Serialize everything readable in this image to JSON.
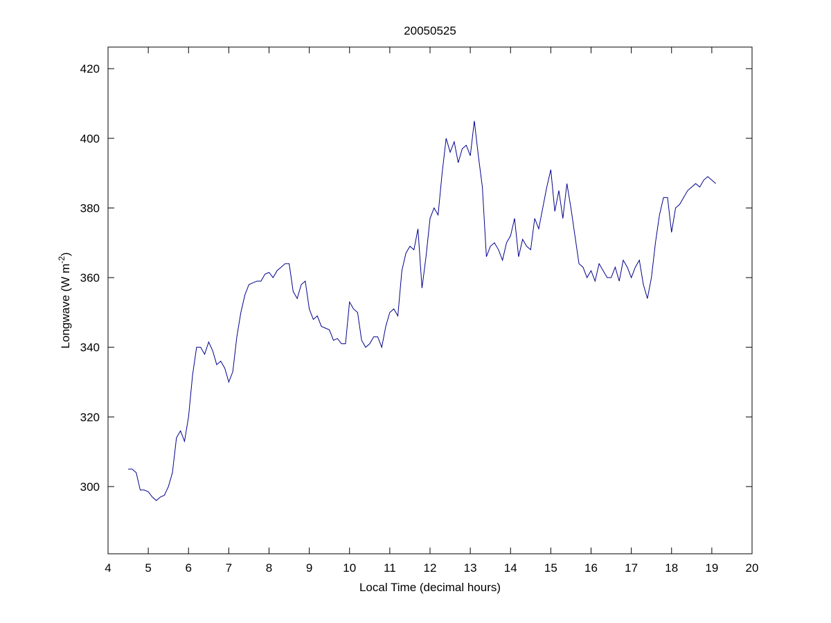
{
  "chart_data": {
    "type": "line",
    "title": "20050525",
    "xlabel": "Local Time (decimal hours)",
    "ylabel": [
      "Longwave (W m",
      "-2",
      ")"
    ],
    "x": [
      4.5,
      4.6,
      4.7,
      4.8,
      4.9,
      5.0,
      5.1,
      5.2,
      5.3,
      5.4,
      5.5,
      5.6,
      5.7,
      5.8,
      5.9,
      6.0,
      6.1,
      6.2,
      6.3,
      6.4,
      6.5,
      6.6,
      6.7,
      6.8,
      6.9,
      7.0,
      7.1,
      7.2,
      7.3,
      7.4,
      7.5,
      7.6,
      7.7,
      7.8,
      7.9,
      8.0,
      8.1,
      8.2,
      8.3,
      8.4,
      8.5,
      8.6,
      8.7,
      8.8,
      8.9,
      9.0,
      9.1,
      9.2,
      9.3,
      9.4,
      9.5,
      9.6,
      9.7,
      9.8,
      9.9,
      10.0,
      10.1,
      10.2,
      10.3,
      10.4,
      10.5,
      10.6,
      10.7,
      10.8,
      10.9,
      11.0,
      11.1,
      11.2,
      11.3,
      11.4,
      11.5,
      11.6,
      11.7,
      11.8,
      11.9,
      12.0,
      12.1,
      12.2,
      12.3,
      12.4,
      12.5,
      12.6,
      12.7,
      12.8,
      12.9,
      13.0,
      13.1,
      13.2,
      13.3,
      13.4,
      13.5,
      13.6,
      13.7,
      13.8,
      13.9,
      14.0,
      14.1,
      14.2,
      14.3,
      14.4,
      14.5,
      14.6,
      14.7,
      14.8,
      14.9,
      15.0,
      15.1,
      15.2,
      15.3,
      15.4,
      15.5,
      15.6,
      15.7,
      15.8,
      15.9,
      16.0,
      16.1,
      16.2,
      16.3,
      16.4,
      16.5,
      16.6,
      16.7,
      16.8,
      16.9,
      17.0,
      17.1,
      17.2,
      17.3,
      17.4,
      17.5,
      17.6,
      17.7,
      17.8,
      17.9,
      18.0,
      18.1,
      18.2,
      18.3,
      18.4,
      18.5,
      18.6,
      18.7,
      18.8,
      18.9,
      19.0,
      19.1
    ],
    "series": [
      {
        "color": "#00008b",
        "values": [
          305,
          305,
          304,
          299,
          299,
          298.5,
          297,
          296,
          297,
          297.5,
          300,
          304,
          314,
          316,
          313,
          320,
          332,
          340,
          340,
          338,
          341.5,
          339,
          335,
          336,
          334,
          330,
          333,
          343,
          350,
          355,
          358,
          358.5,
          359,
          359,
          361,
          361.5,
          360,
          362,
          363,
          364,
          364,
          356,
          354,
          358,
          359,
          351,
          348,
          349,
          346,
          345.5,
          345,
          342,
          342.5,
          341,
          341,
          353,
          351,
          350,
          342,
          340,
          341,
          343,
          343,
          340,
          346,
          350,
          351,
          349,
          362,
          367,
          369,
          368,
          374,
          357,
          366,
          377,
          380,
          378,
          390,
          400,
          396,
          399,
          393,
          397,
          398,
          395,
          405,
          395,
          386,
          366,
          369,
          370,
          368,
          365,
          370,
          372,
          377,
          366,
          371,
          369,
          368,
          377,
          374,
          380,
          386,
          391,
          379,
          385,
          377,
          387,
          380,
          372,
          364,
          363,
          360,
          362,
          359,
          364,
          362,
          360,
          360,
          363,
          359,
          365,
          363,
          360,
          363,
          365,
          358,
          354,
          360,
          370,
          378,
          383,
          383,
          373,
          380,
          381,
          383,
          385,
          386,
          387,
          386,
          388,
          389,
          388,
          387
        ]
      }
    ],
    "xlim": [
      4,
      20
    ],
    "ylim": [
      280.7,
      426.2
    ],
    "xticks": [
      4,
      5,
      6,
      7,
      8,
      9,
      10,
      11,
      12,
      13,
      14,
      15,
      16,
      17,
      18,
      19,
      20
    ],
    "yticks": [
      300,
      320,
      340,
      360,
      380,
      400,
      420
    ],
    "grid": false
  }
}
